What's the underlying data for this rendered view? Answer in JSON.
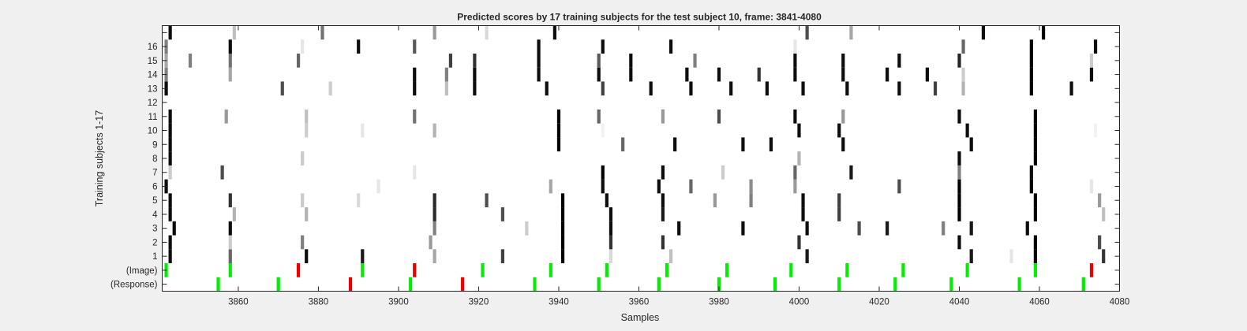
{
  "chart_data": {
    "type": "heatmap",
    "title": "Predicted scores by 17 training subjects for the test subject 10, frame: 3841-4080",
    "xlabel": "Samples",
    "ylabel": "Training subjects 1-17",
    "xlim": [
      3841,
      4080
    ],
    "x_ticks": [
      3860,
      3880,
      3900,
      3920,
      3940,
      3960,
      3980,
      4000,
      4020,
      4040,
      4060,
      4080
    ],
    "y_tick_labels": [
      "(Response)",
      "(Image)",
      "1",
      "2",
      "3",
      "4",
      "5",
      "6",
      "7",
      "8",
      "9",
      "10",
      "11",
      "12",
      "13",
      "14",
      "15",
      "16",
      ""
    ],
    "colors": {
      "target": "#00ee00",
      "nontarget": "#ee0000",
      "plot_bg": "#ffffff",
      "figure_bg": "#f0f0f0"
    },
    "image_markers": [
      {
        "x": 3842,
        "kind": "target"
      },
      {
        "x": 3858,
        "kind": "target"
      },
      {
        "x": 3875,
        "kind": "nontarget"
      },
      {
        "x": 3891,
        "kind": "target"
      },
      {
        "x": 3904,
        "kind": "nontarget"
      },
      {
        "x": 3921,
        "kind": "target"
      },
      {
        "x": 3938,
        "kind": "target"
      },
      {
        "x": 3952,
        "kind": "target"
      },
      {
        "x": 3967,
        "kind": "target"
      },
      {
        "x": 3982,
        "kind": "target"
      },
      {
        "x": 3998,
        "kind": "target"
      },
      {
        "x": 4012,
        "kind": "target"
      },
      {
        "x": 4026,
        "kind": "target"
      },
      {
        "x": 4042,
        "kind": "target"
      },
      {
        "x": 4059,
        "kind": "target"
      },
      {
        "x": 4073,
        "kind": "nontarget"
      }
    ],
    "response_markers": [
      {
        "x": 3855,
        "kind": "target"
      },
      {
        "x": 3870,
        "kind": "target"
      },
      {
        "x": 3888,
        "kind": "nontarget"
      },
      {
        "x": 3903,
        "kind": "target"
      },
      {
        "x": 3916,
        "kind": "nontarget"
      },
      {
        "x": 3934,
        "kind": "target"
      },
      {
        "x": 3950,
        "kind": "target"
      },
      {
        "x": 3965,
        "kind": "target"
      },
      {
        "x": 3980,
        "kind": "target"
      },
      {
        "x": 3994,
        "kind": "target"
      },
      {
        "x": 4010,
        "kind": "target"
      },
      {
        "x": 4024,
        "kind": "target"
      },
      {
        "x": 4038,
        "kind": "target"
      },
      {
        "x": 4055,
        "kind": "target"
      },
      {
        "x": 4071,
        "kind": "target"
      }
    ],
    "subject_scores": [
      {
        "subject": 1,
        "cells": [
          [
            3843,
            0.95
          ],
          [
            3858,
            0.6
          ],
          [
            3877,
            0.95
          ],
          [
            3891,
            0.9
          ],
          [
            3909,
            0.35
          ],
          [
            3926,
            0.75
          ],
          [
            3941,
            1
          ],
          [
            3953,
            0.15
          ],
          [
            3968,
            0.25
          ],
          [
            4002,
            0.9
          ],
          [
            4043,
            0.9
          ],
          [
            4053,
            0.1
          ],
          [
            4059,
            1
          ],
          [
            4076,
            0.8
          ]
        ]
      },
      {
        "subject": 2,
        "cells": [
          [
            3843,
            0.95
          ],
          [
            3858,
            0.2
          ],
          [
            3876,
            0.5
          ],
          [
            3908,
            0.4
          ],
          [
            3941,
            1
          ],
          [
            3953,
            0.8
          ],
          [
            3966,
            0.8
          ],
          [
            4000,
            0.8
          ],
          [
            4040,
            0.95
          ],
          [
            4059,
            1
          ],
          [
            4075,
            0.7
          ]
        ]
      },
      {
        "subject": 3,
        "cells": [
          [
            3844,
            0.95
          ],
          [
            3858,
            0.95
          ],
          [
            3909,
            0.5
          ],
          [
            3932,
            0.2
          ],
          [
            3941,
            1
          ],
          [
            3953,
            0.95
          ],
          [
            3970,
            0.95
          ],
          [
            3986,
            0.95
          ],
          [
            4002,
            0.95
          ],
          [
            4015,
            0.7
          ],
          [
            4022,
            0.9
          ],
          [
            4036,
            0.5
          ],
          [
            4043,
            0.9
          ],
          [
            4057,
            0.95
          ]
        ]
      },
      {
        "subject": 4,
        "cells": [
          [
            3843,
            0.95
          ],
          [
            3859,
            0.3
          ],
          [
            3877,
            0.3
          ],
          [
            3909,
            0.85
          ],
          [
            3926,
            0.7
          ],
          [
            3941,
            1
          ],
          [
            3953,
            0.95
          ],
          [
            3966,
            0.9
          ],
          [
            4001,
            0.95
          ],
          [
            4010,
            0.75
          ],
          [
            4040,
            1
          ],
          [
            4059,
            1
          ],
          [
            4076,
            0.25
          ]
        ]
      },
      {
        "subject": 5,
        "cells": [
          [
            3843,
            0.95
          ],
          [
            3858,
            0.8
          ],
          [
            3876,
            0.2
          ],
          [
            3890,
            0.15
          ],
          [
            3909,
            0.85
          ],
          [
            3922,
            0.7
          ],
          [
            3941,
            1
          ],
          [
            3952,
            0.95
          ],
          [
            3966,
            0.95
          ],
          [
            3979,
            0.4
          ],
          [
            3988,
            0.5
          ],
          [
            4001,
            0.95
          ],
          [
            4010,
            0.75
          ],
          [
            4040,
            1
          ],
          [
            4059,
            1
          ],
          [
            4075,
            0.4
          ]
        ]
      },
      {
        "subject": 6,
        "cells": [
          [
            3842,
            0.95
          ],
          [
            3895,
            0.1
          ],
          [
            3938,
            0.35
          ],
          [
            3951,
            0.95
          ],
          [
            3965,
            0.95
          ],
          [
            3973,
            0.6
          ],
          [
            3988,
            0.45
          ],
          [
            3999,
            0.4
          ],
          [
            4025,
            0.7
          ],
          [
            4040,
            1
          ],
          [
            4058,
            1
          ],
          [
            4073,
            0.1
          ]
        ]
      },
      {
        "subject": 7,
        "cells": [
          [
            3843,
            0.2
          ],
          [
            3856,
            0.7
          ],
          [
            3904,
            0.1
          ],
          [
            3951,
            1
          ],
          [
            3966,
            0.95
          ],
          [
            3981,
            0.2
          ],
          [
            3999,
            0.6
          ],
          [
            4013,
            0.9
          ],
          [
            4040,
            0.5
          ],
          [
            4058,
            0.95
          ]
        ]
      },
      {
        "subject": 8,
        "cells": [
          [
            3843,
            0.95
          ],
          [
            3876,
            0.2
          ],
          [
            4000,
            0.3
          ],
          [
            4040,
            0.95
          ],
          [
            4059,
            1
          ]
        ]
      },
      {
        "subject": 9,
        "cells": [
          [
            3843,
            0.95
          ],
          [
            3940,
            1
          ],
          [
            3956,
            0.6
          ],
          [
            3969,
            0.95
          ],
          [
            3986,
            0.95
          ],
          [
            3993,
            0.95
          ],
          [
            4011,
            0.95
          ],
          [
            4043,
            0.95
          ],
          [
            4059,
            1
          ]
        ]
      },
      {
        "subject": 10,
        "cells": [
          [
            3843,
            0.95
          ],
          [
            3877,
            0.2
          ],
          [
            3891,
            0.1
          ],
          [
            3909,
            0.3
          ],
          [
            3940,
            1
          ],
          [
            3951,
            0.05
          ],
          [
            4000,
            0.95
          ],
          [
            4010,
            0.95
          ],
          [
            4042,
            0.95
          ],
          [
            4059,
            1
          ],
          [
            4074,
            0.05
          ]
        ]
      },
      {
        "subject": 11,
        "cells": [
          [
            3843,
            0.95
          ],
          [
            3857,
            0.4
          ],
          [
            3877,
            0.25
          ],
          [
            3904,
            0.55
          ],
          [
            3940,
            1
          ],
          [
            3950,
            0.6
          ],
          [
            3966,
            0.4
          ],
          [
            3980,
            0.7
          ],
          [
            3999,
            0.95
          ],
          [
            4011,
            0.4
          ],
          [
            4040,
            0.95
          ],
          [
            4059,
            1
          ]
        ]
      },
      {
        "subject": 12,
        "cells": []
      },
      {
        "subject": 13,
        "cells": [
          [
            3842,
            0.95
          ],
          [
            3871,
            0.7
          ],
          [
            3883,
            0.2
          ],
          [
            3904,
            0.95
          ],
          [
            3912,
            0.25
          ],
          [
            3919,
            0.95
          ],
          [
            3937,
            0.95
          ],
          [
            3951,
            0.75
          ],
          [
            3963,
            0.95
          ],
          [
            3973,
            0.95
          ],
          [
            3983,
            0.95
          ],
          [
            3992,
            0.95
          ],
          [
            4001,
            0.95
          ],
          [
            4012,
            0.95
          ],
          [
            4025,
            0.95
          ],
          [
            4034,
            0.75
          ],
          [
            4041,
            0.3
          ],
          [
            4058,
            1
          ],
          [
            4068,
            0.95
          ]
        ]
      },
      {
        "subject": 14,
        "cells": [
          [
            3842,
            0.5
          ],
          [
            3858,
            0.35
          ],
          [
            3904,
            0.95
          ],
          [
            3912,
            0.5
          ],
          [
            3919,
            0.95
          ],
          [
            3935,
            0.95
          ],
          [
            3950,
            0.95
          ],
          [
            3958,
            0.95
          ],
          [
            3972,
            0.95
          ],
          [
            3980,
            0.95
          ],
          [
            3990,
            0.8
          ],
          [
            3999,
            0.95
          ],
          [
            4011,
            0.95
          ],
          [
            4022,
            0.95
          ],
          [
            4032,
            0.95
          ],
          [
            4041,
            0.2
          ],
          [
            4058,
            1
          ],
          [
            4073,
            0.95
          ]
        ]
      },
      {
        "subject": 15,
        "cells": [
          [
            3842,
            0.35
          ],
          [
            3848,
            0.5
          ],
          [
            3858,
            0.55
          ],
          [
            3875,
            0.6
          ],
          [
            3913,
            0.75
          ],
          [
            3919,
            0.8
          ],
          [
            3935,
            0.95
          ],
          [
            3950,
            0.65
          ],
          [
            3958,
            0.95
          ],
          [
            3974,
            0.5
          ],
          [
            3999,
            0.95
          ],
          [
            4011,
            0.95
          ],
          [
            4025,
            0.95
          ],
          [
            4040,
            0.85
          ],
          [
            4058,
            1
          ],
          [
            4073,
            0.2
          ]
        ]
      },
      {
        "subject": 16,
        "cells": [
          [
            3842,
            0.5
          ],
          [
            3858,
            0.95
          ],
          [
            3876,
            0.1
          ],
          [
            3890,
            0.95
          ],
          [
            3904,
            0.65
          ],
          [
            3935,
            0.95
          ],
          [
            3951,
            0.95
          ],
          [
            3968,
            0.95
          ],
          [
            3999,
            0.1
          ],
          [
            4041,
            0.6
          ],
          [
            4058,
            1
          ],
          [
            4074,
            0.95
          ]
        ]
      },
      {
        "subject": 17,
        "cells": [
          [
            3843,
            0.95
          ],
          [
            3859,
            0.25
          ],
          [
            3881,
            0.55
          ],
          [
            3909,
            0.4
          ],
          [
            3922,
            0.15
          ],
          [
            3939,
            0.95
          ],
          [
            4002,
            0.7
          ],
          [
            4013,
            0.35
          ],
          [
            4046,
            0.95
          ],
          [
            4061,
            1
          ]
        ]
      }
    ]
  }
}
